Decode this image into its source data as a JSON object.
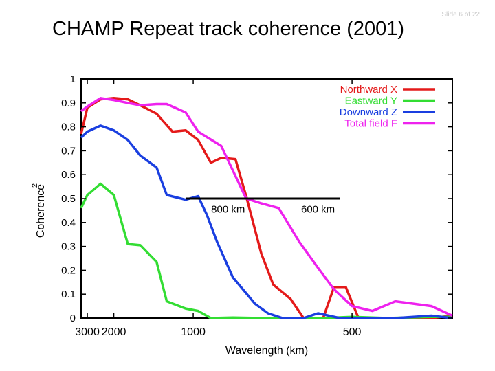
{
  "slide": {
    "title": "CHAMP Repeat track coherence (2001)",
    "number_label": "Slide 6 of 22"
  },
  "chart_data": {
    "type": "line",
    "xlabel": "Wavelength (km)",
    "ylabel": "Coherence",
    "ylabel_superscript": "2",
    "xscale": "reciprocal",
    "xlim": [
      3400,
      380
    ],
    "ylim": [
      0,
      1
    ],
    "x_ticks": [
      {
        "value": 3000,
        "label": "3000"
      },
      {
        "value": 2000,
        "label": "2000"
      },
      {
        "value": 1000,
        "label": "1000"
      },
      {
        "value": 500,
        "label": "500"
      }
    ],
    "y_ticks": [
      {
        "value": 0,
        "label": "0"
      },
      {
        "value": 0.1,
        "label": "0.1"
      },
      {
        "value": 0.2,
        "label": "0.2"
      },
      {
        "value": 0.3,
        "label": "0.3"
      },
      {
        "value": 0.4,
        "label": "0.4"
      },
      {
        "value": 0.5,
        "label": "0.5"
      },
      {
        "value": 0.6,
        "label": "0.6"
      },
      {
        "value": 0.7,
        "label": "0.7"
      },
      {
        "value": 0.8,
        "label": "0.8"
      },
      {
        "value": 0.9,
        "label": "0.9"
      },
      {
        "value": 1,
        "label": "1"
      }
    ],
    "legend_position": "top-right",
    "series": [
      {
        "name": "Northward X",
        "color": "#e41a1a",
        "points": [
          [
            3400,
            0.77
          ],
          [
            3000,
            0.88
          ],
          [
            2400,
            0.915
          ],
          [
            2000,
            0.92
          ],
          [
            1700,
            0.915
          ],
          [
            1500,
            0.89
          ],
          [
            1300,
            0.855
          ],
          [
            1150,
            0.78
          ],
          [
            1050,
            0.785
          ],
          [
            970,
            0.745
          ],
          [
            900,
            0.65
          ],
          [
            850,
            0.67
          ],
          [
            790,
            0.665
          ],
          [
            750,
            0.51
          ],
          [
            700,
            0.27
          ],
          [
            665,
            0.14
          ],
          [
            620,
            0.08
          ],
          [
            590,
            0.0
          ],
          [
            550,
            0.0
          ],
          [
            530,
            0.13
          ],
          [
            510,
            0.13
          ],
          [
            490,
            0.0
          ],
          [
            470,
            0.0
          ],
          [
            450,
            0.0
          ],
          [
            420,
            0.0
          ],
          [
            400,
            0.0
          ],
          [
            380,
            0.01
          ]
        ]
      },
      {
        "name": "Eastward Y",
        "color": "#33dd33",
        "points": [
          [
            3400,
            0.46
          ],
          [
            3000,
            0.515
          ],
          [
            2400,
            0.562
          ],
          [
            2000,
            0.515
          ],
          [
            1700,
            0.31
          ],
          [
            1500,
            0.305
          ],
          [
            1300,
            0.235
          ],
          [
            1200,
            0.07
          ],
          [
            1050,
            0.04
          ],
          [
            970,
            0.03
          ],
          [
            900,
            0.0
          ],
          [
            800,
            0.002
          ],
          [
            700,
            0.0
          ],
          [
            600,
            0.0
          ],
          [
            550,
            0.0
          ],
          [
            500,
            0.005
          ],
          [
            450,
            0.0
          ],
          [
            400,
            0.005
          ],
          [
            380,
            0.005
          ]
        ]
      },
      {
        "name": "Downward Z",
        "color": "#1a3fe0",
        "points": [
          [
            3400,
            0.755
          ],
          [
            3000,
            0.78
          ],
          [
            2400,
            0.805
          ],
          [
            2000,
            0.785
          ],
          [
            1700,
            0.745
          ],
          [
            1500,
            0.68
          ],
          [
            1300,
            0.63
          ],
          [
            1200,
            0.515
          ],
          [
            1050,
            0.495
          ],
          [
            970,
            0.51
          ],
          [
            920,
            0.43
          ],
          [
            870,
            0.32
          ],
          [
            800,
            0.17
          ],
          [
            720,
            0.06
          ],
          [
            680,
            0.02
          ],
          [
            640,
            0.0
          ],
          [
            590,
            0.0
          ],
          [
            560,
            0.02
          ],
          [
            520,
            0.0
          ],
          [
            480,
            0.0
          ],
          [
            440,
            0.0
          ],
          [
            400,
            0.01
          ],
          [
            380,
            0.0
          ]
        ]
      },
      {
        "name": "Total field F",
        "color": "#ee22ee",
        "points": [
          [
            3400,
            0.865
          ],
          [
            3000,
            0.885
          ],
          [
            2400,
            0.92
          ],
          [
            2000,
            0.912
          ],
          [
            1700,
            0.9
          ],
          [
            1500,
            0.89
          ],
          [
            1300,
            0.895
          ],
          [
            1200,
            0.895
          ],
          [
            1050,
            0.86
          ],
          [
            970,
            0.78
          ],
          [
            850,
            0.72
          ],
          [
            750,
            0.5
          ],
          [
            700,
            0.48
          ],
          [
            650,
            0.46
          ],
          [
            600,
            0.32
          ],
          [
            560,
            0.21
          ],
          [
            530,
            0.12
          ],
          [
            500,
            0.05
          ],
          [
            470,
            0.03
          ],
          [
            440,
            0.07
          ],
          [
            400,
            0.05
          ],
          [
            380,
            0.01
          ]
        ]
      }
    ],
    "annotation_line": {
      "x_start": 1050,
      "x_end": 520,
      "y": 0.5
    },
    "annotations": [
      {
        "text": "800 km",
        "x": 820,
        "y": 0.455
      },
      {
        "text": "600 km",
        "x": 560,
        "y": 0.455
      }
    ]
  }
}
